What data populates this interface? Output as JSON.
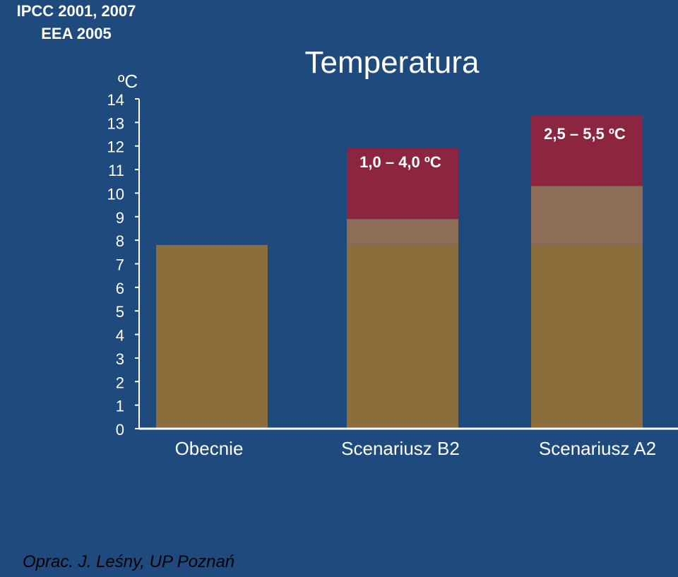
{
  "source": {
    "line1": "IPCC 2001, 2007",
    "line2": "EEA 2005"
  },
  "credit": "Oprac. J. Leśny, UP Poznań",
  "chart_data": {
    "type": "bar",
    "title": "Temperatura",
    "ylabel": "ºC",
    "ylim": [
      0,
      14
    ],
    "yticks": [
      "0",
      "1",
      "2",
      "3",
      "4",
      "5",
      "6",
      "7",
      "8",
      "9",
      "10",
      "11",
      "12",
      "13",
      "14"
    ],
    "categories": [
      "Obecnie",
      "Scenariusz B2",
      "Scenariusz A2"
    ],
    "series": [
      {
        "values": [
          7.8,
          7.8,
          7.8
        ],
        "color": "#8b6e3c"
      },
      {
        "values": [
          0,
          1.1,
          2.5
        ],
        "color": "#8c6e56"
      },
      {
        "values": [
          0,
          3.0,
          3.0
        ],
        "color": "#8c2540"
      }
    ],
    "annotations": [
      "",
      "1,0 – 4,0 ºC",
      "2,5 – 5,5 ºC"
    ],
    "grid": false
  }
}
